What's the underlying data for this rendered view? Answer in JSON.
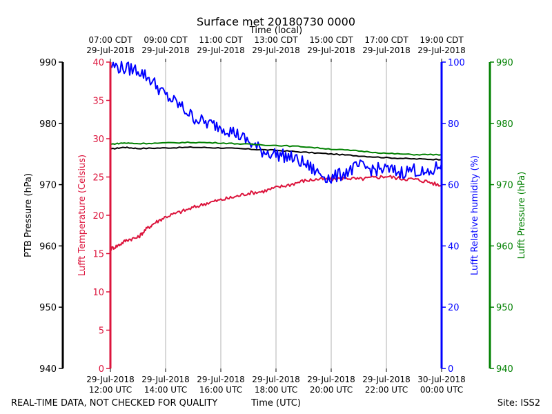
{
  "title": "Surface met 20180730 0000",
  "top_axis_label": "Time (local)",
  "bottom_axis_label": "Time (UTC)",
  "footer_left": "REAL-TIME DATA, NOT CHECKED FOR QUALITY",
  "footer_right": "Site: ISS2",
  "colors": {
    "ptb": "#000000",
    "temperature": "#dc143c",
    "humidity": "#0000ff",
    "lufft_pressure": "#008000",
    "grid": "#b0b0b0"
  },
  "chart_data": {
    "type": "line",
    "x_unit": "hours UTC",
    "x_range": [
      12,
      24
    ],
    "top_ticks": [
      {
        "x": 12,
        "line1": "07:00 CDT",
        "line2": "29-Jul-2018"
      },
      {
        "x": 14,
        "line1": "09:00 CDT",
        "line2": "29-Jul-2018"
      },
      {
        "x": 16,
        "line1": "11:00 CDT",
        "line2": "29-Jul-2018"
      },
      {
        "x": 18,
        "line1": "13:00 CDT",
        "line2": "29-Jul-2018"
      },
      {
        "x": 20,
        "line1": "15:00 CDT",
        "line2": "29-Jul-2018"
      },
      {
        "x": 22,
        "line1": "17:00 CDT",
        "line2": "29-Jul-2018"
      },
      {
        "x": 24,
        "line1": "19:00 CDT",
        "line2": "29-Jul-2018"
      }
    ],
    "bottom_ticks": [
      {
        "x": 12,
        "line1": "29-Jul-2018",
        "line2": "12:00 UTC"
      },
      {
        "x": 14,
        "line1": "29-Jul-2018",
        "line2": "14:00 UTC"
      },
      {
        "x": 16,
        "line1": "29-Jul-2018",
        "line2": "16:00 UTC"
      },
      {
        "x": 18,
        "line1": "29-Jul-2018",
        "line2": "18:00 UTC"
      },
      {
        "x": 20,
        "line1": "29-Jul-2018",
        "line2": "20:00 UTC"
      },
      {
        "x": 22,
        "line1": "29-Jul-2018",
        "line2": "22:00 UTC"
      },
      {
        "x": 24,
        "line1": "30-Jul-2018",
        "line2": "00:00 UTC"
      }
    ],
    "axes": {
      "ptb": {
        "label": "PTB Pressure (hPa)",
        "range": [
          940,
          990
        ],
        "ticks": [
          940,
          950,
          960,
          970,
          980,
          990
        ]
      },
      "temperature": {
        "label": "Lufft Temperature (Celsius)",
        "range": [
          0,
          40
        ],
        "ticks": [
          0,
          5,
          10,
          15,
          20,
          25,
          30,
          35,
          40
        ]
      },
      "humidity": {
        "label": "Lufft Relative humidity (%)",
        "range": [
          0,
          100
        ],
        "ticks": [
          0,
          20,
          40,
          60,
          80,
          100
        ]
      },
      "lufft_pressure": {
        "label": "Lufft Pressure (hPa)",
        "range": [
          940,
          990
        ],
        "ticks": [
          940,
          950,
          960,
          970,
          980,
          990
        ]
      }
    },
    "series": [
      {
        "name": "PTB Pressure",
        "axis": "ptb",
        "color": "#000000",
        "x": [
          12,
          12.5,
          13,
          14,
          15,
          16,
          17,
          18,
          19,
          20,
          21,
          22,
          23,
          24
        ],
        "y": [
          975.8,
          976.1,
          975.9,
          976.0,
          976.1,
          976.0,
          975.8,
          975.6,
          975.3,
          975.0,
          974.7,
          974.4,
          974.2,
          974.1
        ]
      },
      {
        "name": "Lufft Temperature",
        "axis": "temperature",
        "color": "#dc143c",
        "x": [
          12,
          12.3,
          12.6,
          13,
          13.3,
          13.6,
          14,
          14.5,
          15,
          15.5,
          16,
          16.5,
          17,
          17.5,
          18,
          18.5,
          19,
          19.5,
          20,
          20.5,
          21,
          21.5,
          22,
          22.5,
          23,
          23.5,
          24
        ],
        "y": [
          15.6,
          16.1,
          16.8,
          17.1,
          18.2,
          19.0,
          19.8,
          20.4,
          21.0,
          21.6,
          22.0,
          22.4,
          22.9,
          23.1,
          23.6,
          24.0,
          24.5,
          24.7,
          24.7,
          24.9,
          24.7,
          24.9,
          25.1,
          24.8,
          24.7,
          24.4,
          23.8
        ]
      },
      {
        "name": "Lufft Relative humidity",
        "axis": "humidity",
        "color": "#0000ff",
        "x": [
          12,
          12.5,
          13,
          13.5,
          14,
          14.5,
          15,
          15.5,
          16,
          16.5,
          17,
          17.5,
          18,
          18.5,
          19,
          19.5,
          20,
          20.5,
          21,
          21.5,
          22,
          22.5,
          23,
          23.5,
          24
        ],
        "y": [
          99,
          98,
          97.5,
          94,
          89,
          86,
          82,
          80,
          79,
          77,
          74,
          71,
          70,
          69,
          67,
          64,
          62,
          64,
          66,
          65,
          65,
          64,
          65,
          63,
          67
        ]
      },
      {
        "name": "Lufft Pressure",
        "axis": "lufft_pressure",
        "color": "#008000",
        "x": [
          12,
          12.5,
          13,
          14,
          15,
          16,
          17,
          18,
          19,
          20,
          21,
          22,
          23,
          24
        ],
        "y": [
          976.6,
          976.8,
          976.7,
          976.8,
          976.9,
          976.8,
          976.6,
          976.4,
          976.2,
          975.8,
          975.5,
          975.1,
          974.9,
          974.9
        ]
      }
    ]
  }
}
